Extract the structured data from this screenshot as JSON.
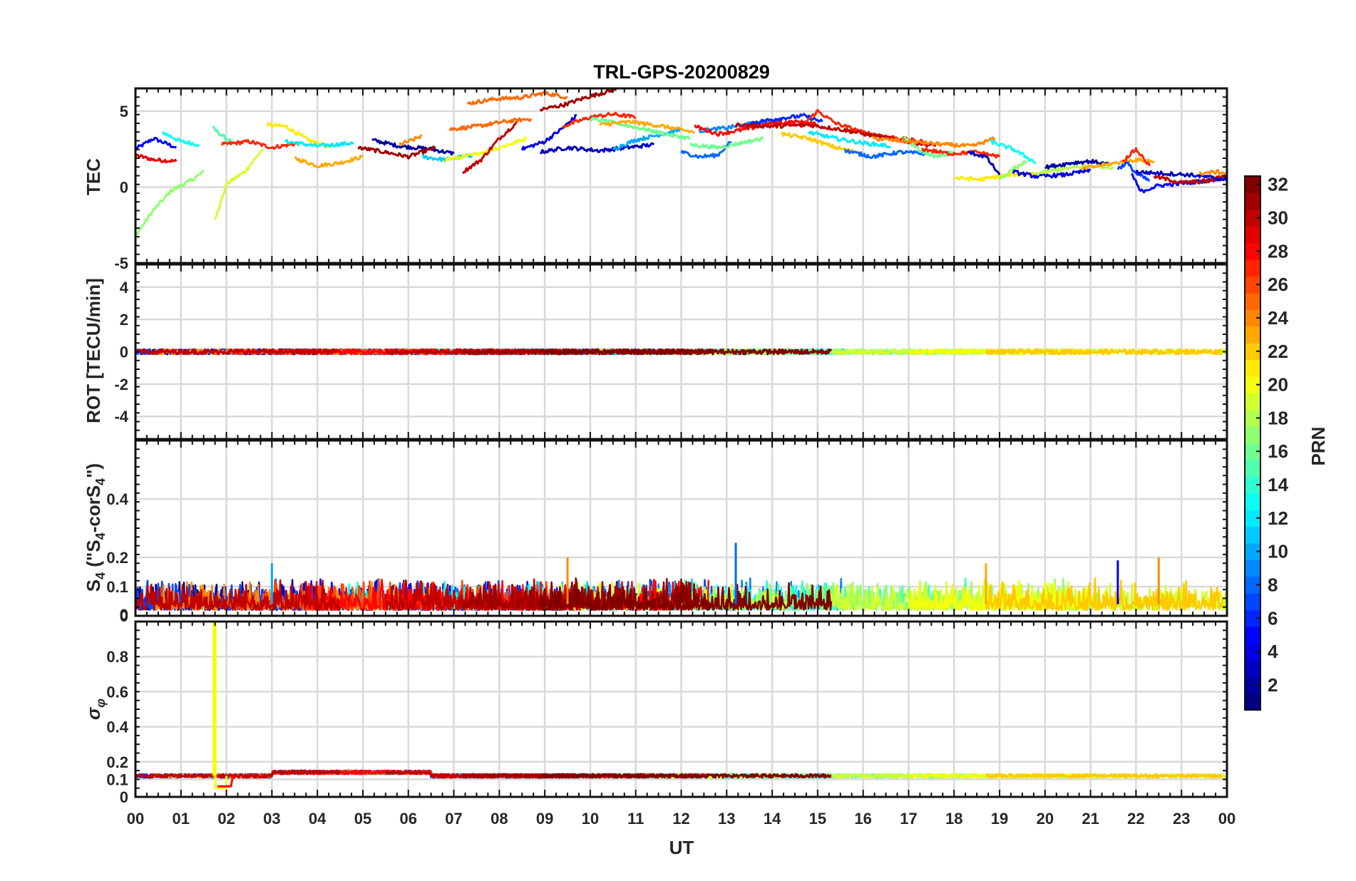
{
  "chart_data": {
    "type": "line",
    "title": "TRL-GPS-20200829",
    "xlabel": "UT",
    "x_ticks": [
      "00",
      "01",
      "02",
      "03",
      "04",
      "05",
      "06",
      "07",
      "08",
      "09",
      "10",
      "11",
      "12",
      "13",
      "14",
      "15",
      "16",
      "17",
      "18",
      "19",
      "20",
      "21",
      "22",
      "23",
      "00"
    ],
    "xlim": [
      0,
      24
    ],
    "colorbar": {
      "label": "PRN",
      "range": [
        1,
        32
      ],
      "ticks": [
        "2",
        "4",
        "6",
        "8",
        "10",
        "12",
        "14",
        "16",
        "18",
        "20",
        "22",
        "24",
        "26",
        "28",
        "30",
        "32"
      ]
    },
    "panels": [
      {
        "name": "TEC",
        "ylabel": "TEC",
        "ylim": [
          -5,
          6.5
        ],
        "y_ticks": [
          "-5",
          "0",
          "5"
        ],
        "grid": true,
        "series": [
          {
            "prn": 5,
            "x": [
              0,
              0.4,
              0.9
            ],
            "y": [
              2.5,
              3.2,
              2.6
            ]
          },
          {
            "prn": 29,
            "x": [
              0,
              0.4,
              0.9
            ],
            "y": [
              2.1,
              1.8,
              1.7
            ]
          },
          {
            "prn": 17,
            "x": [
              0,
              0.4,
              0.8,
              1.2,
              1.5
            ],
            "y": [
              -3.2,
              -1.5,
              -0.2,
              0.4,
              1.0
            ]
          },
          {
            "prn": 13,
            "x": [
              0.6,
              1.0,
              1.4
            ],
            "y": [
              3.6,
              3.0,
              2.8
            ]
          },
          {
            "prn": 19,
            "x": [
              1.75,
              2.0,
              2.4,
              2.8
            ],
            "y": [
              -2.2,
              0.2,
              1.0,
              2.5
            ]
          },
          {
            "prn": 15,
            "x": [
              1.7,
              1.9,
              2.1
            ],
            "y": [
              3.9,
              3.4,
              3.0
            ]
          },
          {
            "prn": 27,
            "x": [
              1.9,
              2.5,
              3.0,
              3.6
            ],
            "y": [
              2.8,
              3.0,
              2.6,
              2.9
            ]
          },
          {
            "prn": 21,
            "x": [
              2.9,
              3.3,
              3.8,
              4.3
            ],
            "y": [
              4.1,
              4.0,
              3.1,
              2.6
            ]
          },
          {
            "prn": 23,
            "x": [
              3.5,
              4.0,
              4.5,
              5.0
            ],
            "y": [
              1.9,
              1.4,
              1.6,
              2.0
            ]
          },
          {
            "prn": 12,
            "x": [
              3.3,
              4.0,
              4.8
            ],
            "y": [
              3.0,
              2.7,
              2.9
            ]
          },
          {
            "prn": 2,
            "x": [
              5.2,
              5.8,
              6.5,
              7.0
            ],
            "y": [
              3.1,
              2.7,
              2.5,
              2.2
            ]
          },
          {
            "prn": 31,
            "x": [
              4.9,
              5.5,
              6.0,
              6.6
            ],
            "y": [
              2.6,
              2.3,
              2.0,
              2.6
            ]
          },
          {
            "prn": 24,
            "x": [
              5.8,
              6.1,
              6.3
            ],
            "y": [
              2.8,
              3.1,
              3.4
            ]
          },
          {
            "prn": 11,
            "x": [
              6.3,
              6.8,
              7.4
            ],
            "y": [
              2.0,
              1.8,
              2.1
            ]
          },
          {
            "prn": 20,
            "x": [
              6.8,
              7.4,
              8.0,
              8.6
            ],
            "y": [
              1.8,
              2.1,
              2.6,
              3.2
            ]
          },
          {
            "prn": 30,
            "x": [
              7.2,
              7.6,
              8.0,
              8.4
            ],
            "y": [
              1.0,
              1.8,
              3.2,
              4.3
            ]
          },
          {
            "prn": 25,
            "x": [
              7.3,
              7.9,
              8.5,
              9.0,
              9.5
            ],
            "y": [
              5.5,
              5.8,
              5.9,
              6.2,
              5.9
            ]
          },
          {
            "prn": 25,
            "x": [
              6.9,
              7.5,
              8.1,
              8.7
            ],
            "y": [
              3.8,
              4.0,
              4.3,
              4.5
            ]
          },
          {
            "prn": 4,
            "x": [
              8.5,
              9.0,
              9.4,
              9.7
            ],
            "y": [
              2.5,
              3.0,
              3.9,
              4.7
            ]
          },
          {
            "prn": 31,
            "x": [
              8.9,
              9.4,
              9.9,
              10.4,
              10.6
            ],
            "y": [
              5.1,
              5.4,
              5.9,
              6.3,
              6.5
            ]
          },
          {
            "prn": 27,
            "x": [
              9.4,
              10.0,
              10.5,
              11.0
            ],
            "y": [
              4.0,
              4.6,
              4.8,
              4.6
            ]
          },
          {
            "prn": 3,
            "x": [
              8.9,
              9.5,
              10.2,
              10.8,
              11.4
            ],
            "y": [
              2.3,
              2.6,
              2.4,
              2.6,
              2.8
            ]
          },
          {
            "prn": 10,
            "x": [
              10.5,
              11.0,
              11.6,
              12.0
            ],
            "y": [
              2.5,
              3.1,
              3.5,
              3.8
            ]
          },
          {
            "prn": 16,
            "x": [
              10.0,
              10.6,
              11.2,
              11.8,
              12.2
            ],
            "y": [
              4.5,
              4.2,
              3.8,
              3.4,
              3.2
            ]
          },
          {
            "prn": 23,
            "x": [
              10.2,
              10.9,
              11.6,
              12.3
            ],
            "y": [
              4.1,
              4.3,
              4.0,
              3.6
            ]
          },
          {
            "prn": 8,
            "x": [
              12.0,
              12.4,
              12.8,
              13.1
            ],
            "y": [
              2.3,
              2.0,
              2.1,
              3.0
            ]
          },
          {
            "prn": 16,
            "x": [
              12.2,
              12.8,
              13.3,
              13.8
            ],
            "y": [
              2.8,
              2.6,
              2.9,
              3.2
            ]
          },
          {
            "prn": 9,
            "x": [
              12.4,
              13.0,
              13.6,
              14.2
            ],
            "y": [
              3.7,
              3.9,
              4.2,
              4.4
            ]
          },
          {
            "prn": 28,
            "x": [
              12.3,
              12.8,
              13.4,
              14.0,
              14.6,
              15.0
            ],
            "y": [
              4.0,
              3.5,
              3.8,
              4.2,
              4.3,
              4.1
            ]
          },
          {
            "prn": 6,
            "x": [
              13.5,
              14.1,
              14.7,
              15.1
            ],
            "y": [
              4.2,
              4.5,
              4.7,
              4.3
            ]
          },
          {
            "prn": 27,
            "x": [
              14.6,
              15.0,
              15.4,
              16.0,
              16.8,
              17.3
            ],
            "y": [
              3.9,
              5.0,
              4.2,
              3.6,
              3.2,
              3.0
            ]
          },
          {
            "prn": 30,
            "x": [
              13.2,
              14.0,
              14.8,
              15.5,
              16.2,
              17.0,
              17.6
            ],
            "y": [
              4.1,
              4.0,
              4.1,
              3.8,
              3.4,
              3.0,
              2.7
            ]
          },
          {
            "prn": 12,
            "x": [
              14.8,
              15.4,
              16.0,
              16.6
            ],
            "y": [
              3.6,
              3.2,
              2.9,
              2.7
            ]
          },
          {
            "prn": 22,
            "x": [
              14.2,
              14.8,
              15.4,
              16.0
            ],
            "y": [
              3.5,
              3.2,
              2.6,
              2.2
            ]
          },
          {
            "prn": 8,
            "x": [
              15.6,
              16.2,
              16.8,
              17.4
            ],
            "y": [
              2.4,
              2.0,
              2.3,
              2.2
            ]
          },
          {
            "prn": 16,
            "x": [
              16.9,
              17.2,
              17.6,
              18.0
            ],
            "y": [
              3.3,
              2.5,
              2.0,
              2.3
            ]
          },
          {
            "prn": 24,
            "x": [
              16.2,
              17.0,
              17.8,
              18.4,
              18.9
            ],
            "y": [
              3.2,
              3.0,
              2.8,
              2.7,
              3.2
            ]
          },
          {
            "prn": 27,
            "x": [
              17.3,
              17.9,
              18.5,
              19.0
            ],
            "y": [
              2.5,
              2.2,
              2.3,
              2.0
            ]
          },
          {
            "prn": 3,
            "x": [
              18.3,
              18.7,
              19.0
            ],
            "y": [
              2.3,
              2.0,
              0.8
            ]
          },
          {
            "prn": 13,
            "x": [
              18.8,
              19.3,
              19.8
            ],
            "y": [
              3.0,
              2.5,
              1.6
            ]
          },
          {
            "prn": 21,
            "x": [
              18.0,
              18.6,
              19.2,
              19.8
            ],
            "y": [
              0.6,
              0.5,
              0.8,
              0.9
            ]
          },
          {
            "prn": 17,
            "x": [
              19.0,
              19.3,
              19.6
            ],
            "y": [
              0.5,
              1.2,
              1.7
            ]
          },
          {
            "prn": 4,
            "x": [
              19.3,
              19.8,
              20.4,
              21.0
            ],
            "y": [
              1.0,
              0.7,
              0.8,
              1.1
            ]
          },
          {
            "prn": 18,
            "x": [
              19.8,
              20.4,
              21.0,
              21.5
            ],
            "y": [
              0.9,
              1.2,
              1.4,
              1.3
            ]
          },
          {
            "prn": 2,
            "x": [
              20.0,
              20.6,
              21.0,
              21.4
            ],
            "y": [
              1.3,
              1.6,
              1.7,
              1.5
            ]
          },
          {
            "prn": 23,
            "x": [
              20.8,
              21.4,
              22.0,
              22.4
            ],
            "y": [
              1.2,
              1.5,
              1.8,
              1.7
            ]
          },
          {
            "prn": 7,
            "x": [
              21.6,
              21.8,
              22.0,
              22.3
            ],
            "y": [
              1.2,
              1.6,
              0.9,
              0.4
            ]
          },
          {
            "prn": 5,
            "x": [
              21.9,
              22.1,
              22.5,
              23.2,
              24.0
            ],
            "y": [
              0.9,
              -0.3,
              0.1,
              0.3,
              0.6
            ]
          },
          {
            "prn": 27,
            "x": [
              21.7,
              22.0,
              22.3
            ],
            "y": [
              1.7,
              2.5,
              1.4
            ]
          },
          {
            "prn": 30,
            "x": [
              22.4,
              23.0,
              23.6,
              24.0
            ],
            "y": [
              0.7,
              0.3,
              0.4,
              0.8
            ]
          },
          {
            "prn": 3,
            "x": [
              22.0,
              22.6,
              23.2,
              24.0
            ],
            "y": [
              1.0,
              0.9,
              0.8,
              0.5
            ]
          },
          {
            "prn": 24,
            "x": [
              23.4,
              23.8,
              24.0
            ],
            "y": [
              0.9,
              1.0,
              0.9
            ]
          }
        ]
      },
      {
        "name": "ROT",
        "ylabel": "ROT [TECU/min]",
        "ylim": [
          -5.4,
          5.4
        ],
        "y_ticks": [
          "-4",
          "-2",
          "0",
          "2",
          "4"
        ],
        "grid": true,
        "note": "All PRN traces stay close to 0 TECU/min (within about ±0.4) over the whole day."
      },
      {
        "name": "S4",
        "ylabel": "S4 (\"S4-corS4\")",
        "ylim": [
          0,
          0.6
        ],
        "y_ticks": [
          "0",
          "0",
          "0.1",
          "0.2",
          "0.4"
        ],
        "grid": true,
        "note": "Background S4 mostly 0.02–0.12 for all PRNs; isolated spikes near 0.25 at 13.2 UT, about 0.2 at 9.5 and 22.5 UT, 0.19 at 21.6 UT, 0.18 at 3.0 UT."
      },
      {
        "name": "sigma_phi",
        "ylabel": "σφ",
        "ylim": [
          0,
          1
        ],
        "y_ticks": [
          "0",
          "0.1",
          "0.2",
          "0.4",
          "0.6",
          "0.8"
        ],
        "grid": true,
        "note": "Near-constant ~0.12 for all PRNs; one PRN 20 spike reaching ~1.0 at about 01:43 UT, followed by dip to ~0.05 until ~02:00 UT."
      }
    ]
  }
}
